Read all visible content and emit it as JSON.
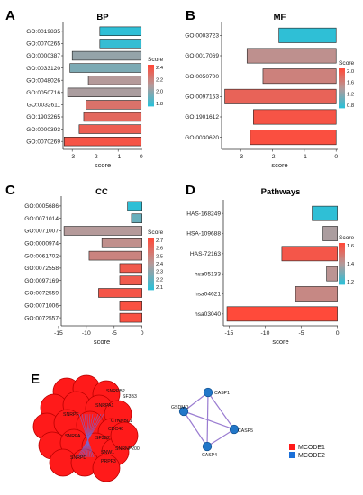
{
  "chart_data": [
    {
      "panel": "A",
      "type": "bar",
      "orientation": "horizontal",
      "title": "BP",
      "xlabel": "score",
      "xlim": [
        -3.4,
        0.05
      ],
      "xticks": [
        -3,
        -2,
        -1,
        0
      ],
      "categories": [
        "GO:0019835",
        "GO:0070265",
        "GO:0000387",
        "GO:0033120",
        "GO:0048026",
        "GO:0050716",
        "GO:0032611",
        "GO:1903265",
        "GO:0000393",
        "GO:0070269"
      ],
      "values": [
        -1.8,
        -1.8,
        -3.0,
        -3.1,
        -2.3,
        -3.2,
        -2.4,
        -2.5,
        -2.7,
        -3.35
      ],
      "colorscale": {
        "title": "Score",
        "ticks": [
          "2.4",
          "2.2",
          "2.0",
          "1.8"
        ],
        "min": 1.7,
        "max": 2.5
      },
      "color_values": [
        1.7,
        1.72,
        2.0,
        1.93,
        2.1,
        2.07,
        2.3,
        2.35,
        2.4,
        2.45
      ]
    },
    {
      "panel": "B",
      "type": "bar",
      "orientation": "horizontal",
      "title": "MF",
      "xlabel": "score",
      "xlim": [
        -3.6,
        0.05
      ],
      "xticks": [
        -3,
        -2,
        -1,
        0
      ],
      "categories": [
        "GO:0003723",
        "GO:0017069",
        "GO:0050700",
        "GO:0097153",
        "GO:1901612",
        "GO:0030620"
      ],
      "values": [
        -1.8,
        -2.8,
        -2.3,
        -3.5,
        -2.6,
        -2.7
      ],
      "colorscale": {
        "title": "Score",
        "ticks": [
          "2.0",
          "1.6",
          "1.2",
          "0.8"
        ],
        "min": 0.6,
        "max": 2.2
      },
      "color_values": [
        0.6,
        1.5,
        1.65,
        1.95,
        2.1,
        2.15
      ]
    },
    {
      "panel": "C",
      "type": "bar",
      "orientation": "horizontal",
      "title": "CC",
      "xlabel": "score",
      "xlim": [
        -14.5,
        0.05
      ],
      "xticks": [
        -15,
        -10,
        -5,
        0
      ],
      "categories": [
        "GO:0005686",
        "GO:0071014",
        "GO:0071007",
        "GO:0000974",
        "GO:0061702",
        "GO:0072558",
        "GO:0097169",
        "GO:0072559",
        "GO:0071006",
        "GO:0072557"
      ],
      "values": [
        -2.6,
        -1.9,
        -14.0,
        -7.2,
        -9.5,
        -4.0,
        -4.0,
        -7.8,
        -4.0,
        -4.0
      ],
      "colorscale": {
        "title": "Score",
        "ticks": [
          "2.7",
          "2.6",
          "2.5",
          "2.4",
          "2.3",
          "2.2",
          "2.1"
        ],
        "min": 2.05,
        "max": 2.75
      },
      "color_values": [
        2.05,
        2.2,
        2.4,
        2.45,
        2.5,
        2.68,
        2.68,
        2.7,
        2.72,
        2.72
      ]
    },
    {
      "panel": "D",
      "type": "bar",
      "orientation": "horizontal",
      "title": "Pathways",
      "xlabel": "score",
      "xlim": [
        -15.8,
        0.05
      ],
      "xticks": [
        -15,
        -10,
        -5,
        0
      ],
      "categories": [
        "HAS-168249",
        "HSA-109688",
        "HAS-72163",
        "hsa05133",
        "hsa04621",
        "hsa03040"
      ],
      "values": [
        -3.5,
        -2.0,
        -7.7,
        -1.5,
        -5.8,
        -15.3
      ],
      "colorscale": {
        "title": "Score",
        "ticks": [
          "1.6",
          "1.4",
          "1.2"
        ],
        "min": 1.1,
        "max": 1.75
      },
      "color_values": [
        1.1,
        1.4,
        1.7,
        1.45,
        1.5,
        1.75
      ]
    }
  ],
  "network": {
    "panel": "E",
    "mcode1_labels": [
      "SNRPB2",
      "SF3B3",
      "SNRPA1",
      "CTNNBL1",
      "SNRPF",
      "CDC40",
      "SF3B2",
      "SNRNP200",
      "SNW1",
      "PRPF3",
      "SNRPD",
      "SNRPA"
    ],
    "mcode2_nodes": [
      "CASP1",
      "GSDMD",
      "CASP5",
      "CASP4"
    ],
    "legend": [
      {
        "label": "MCODE1",
        "color": "#ff1a1a"
      },
      {
        "label": "MCODE2",
        "color": "#1a6fd8"
      }
    ]
  },
  "colors": {
    "low": "#2fbfd6",
    "mid": "#b59a9a",
    "high": "#ff4a3a",
    "node_red": "#ff1a1a",
    "node_blue": "#2277c8",
    "edge_purple": "#9a7cd1"
  }
}
